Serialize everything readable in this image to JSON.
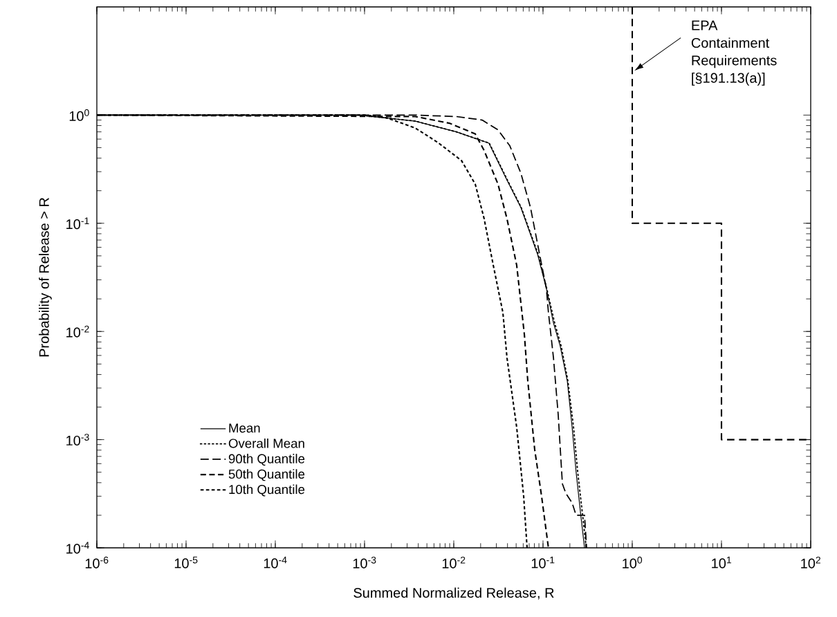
{
  "chart_data": {
    "type": "line",
    "xlabel": "Summed Normalized Release, R",
    "ylabel": "Probability of Release > R",
    "log": "xy",
    "xlim": [
      1e-06,
      100
    ],
    "ylim": [
      0.0001,
      10
    ],
    "xticks": [
      {
        "value": 1e-06,
        "label": "10$^{-6}$"
      },
      {
        "value": 1e-05,
        "label": "10$^{-5}$"
      },
      {
        "value": 0.0001,
        "label": "10$^{-4}$"
      },
      {
        "value": 0.001,
        "label": "10$^{-3}$"
      },
      {
        "value": 0.01,
        "label": "10$^{-2}$"
      },
      {
        "value": 0.1,
        "label": "10$^{-1}$"
      },
      {
        "value": 1,
        "label": "10$^{0}$"
      },
      {
        "value": 10,
        "label": "10$^{1}$"
      },
      {
        "value": 100,
        "label": "10$^{2}$"
      }
    ],
    "yticks": [
      {
        "value": 0.0001,
        "label": "10$^{-4}$"
      },
      {
        "value": 0.001,
        "label": "10$^{-3}$"
      },
      {
        "value": 0.01,
        "label": "10$^{-2}$"
      },
      {
        "value": 0.1,
        "label": "10$^{-1}$"
      },
      {
        "value": 1,
        "label": "10$^{0}$"
      }
    ],
    "legend": "bottom left",
    "grid": false,
    "series": [
      {
        "name": "Mean",
        "color": "#000000",
        "line_style": "solid",
        "x": [
          1e-06,
          0.00088,
          0.0037,
          0.0107,
          0.0248,
          0.0395,
          0.0565,
          0.0867,
          0.109,
          0.131,
          0.156,
          0.187,
          0.212,
          0.235,
          0.267,
          0.292
        ],
        "values": [
          1,
          1,
          0.88,
          0.7,
          0.55,
          0.25,
          0.14,
          0.052,
          0.025,
          0.012,
          0.0073,
          0.0035,
          0.0013,
          0.0005,
          0.00019,
          0.0001
        ]
      },
      {
        "name": "Overall Mean",
        "color": "#000000",
        "line_style": "dotted",
        "x": [
          1e-06,
          0.00088,
          0.0037,
          0.0107,
          0.025,
          0.04,
          0.057,
          0.088,
          0.11,
          0.135,
          0.16,
          0.19,
          0.22,
          0.245,
          0.28,
          0.305
        ],
        "values": [
          1,
          1,
          0.88,
          0.7,
          0.55,
          0.25,
          0.14,
          0.052,
          0.025,
          0.012,
          0.0073,
          0.0035,
          0.0013,
          0.0005,
          0.00019,
          0.0001
        ]
      },
      {
        "name": "90th Quantile",
        "color": "#000000",
        "line_style": "dashed",
        "x": [
          1e-06,
          0.0037,
          0.0107,
          0.0208,
          0.0313,
          0.0425,
          0.0565,
          0.0724,
          0.0914,
          0.109,
          0.115,
          0.131,
          0.148,
          0.165,
          0.18,
          0.212,
          0.235,
          0.292,
          0.308
        ],
        "values": [
          1,
          1,
          0.97,
          0.9,
          0.73,
          0.52,
          0.29,
          0.14,
          0.052,
          0.025,
          0.015,
          0.0057,
          0.0017,
          0.00039,
          0.00032,
          0.00026,
          0.0002,
          0.0002,
          0.0001
        ]
      },
      {
        "name": "50th Quantile",
        "color": "#000000",
        "line_style": "dashed",
        "x": [
          1e-06,
          0.0037,
          0.009,
          0.0174,
          0.0219,
          0.0313,
          0.0395,
          0.0507,
          0.0618,
          0.0675,
          0.0807,
          0.0964,
          0.115
        ],
        "values": [
          1,
          0.97,
          0.84,
          0.67,
          0.47,
          0.23,
          0.11,
          0.041,
          0.0094,
          0.0035,
          0.00081,
          0.0003,
          0.0001
        ]
      },
      {
        "name": "10th Quantile",
        "color": "#000000",
        "line_style": "dashed",
        "x": [
          1e-06,
          0.00105,
          0.0018,
          0.0037,
          0.0066,
          0.0122,
          0.0174,
          0.0219,
          0.0277,
          0.0355,
          0.0395,
          0.0507,
          0.0607,
          0.0663
        ],
        "values": [
          1,
          1,
          0.94,
          0.76,
          0.56,
          0.38,
          0.23,
          0.11,
          0.041,
          0.015,
          0.0057,
          0.0013,
          0.0003,
          0.0001
        ]
      },
      {
        "color": "#000000",
        "line_style": "dashed",
        "x": [
          1,
          1,
          10,
          10,
          100
        ],
        "values": [
          10,
          0.1,
          0.1,
          0.001,
          0.001
        ]
      }
    ],
    "annotations": [
      "EPA Containment Requirements [§191.13(a)]"
    ]
  }
}
